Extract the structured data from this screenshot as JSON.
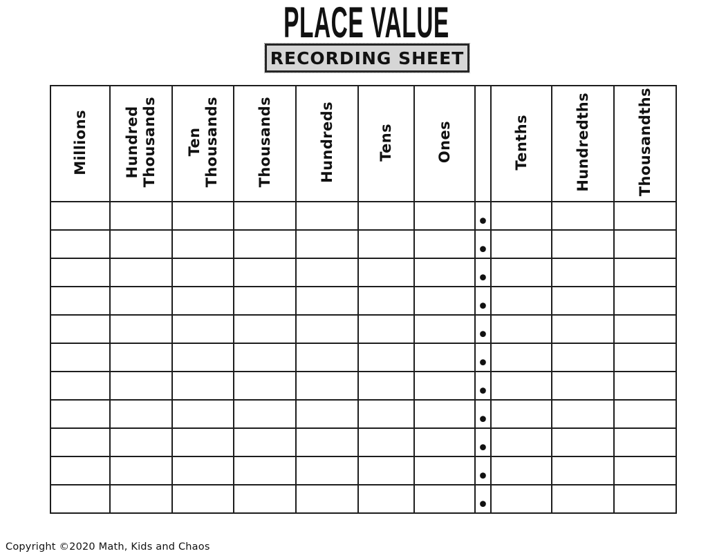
{
  "page": {
    "title": "PLACE VALUE",
    "subtitle": "RECORDING SHEET",
    "copyright": "Copyright ©2020 Math, Kids and Chaos"
  },
  "table": {
    "decimal_mark": "•",
    "row_count": 11,
    "columns": [
      {
        "key": "millions",
        "label": "Millions"
      },
      {
        "key": "hundred-thousands",
        "label": "Hundred\nThousands"
      },
      {
        "key": "ten-thousands",
        "label": "Ten\nThousands"
      },
      {
        "key": "thousands",
        "label": "Thousands"
      },
      {
        "key": "hundreds",
        "label": "Hundreds"
      },
      {
        "key": "tens",
        "label": "Tens"
      },
      {
        "key": "ones",
        "label": "Ones"
      },
      {
        "key": "decimal-point",
        "label": ""
      },
      {
        "key": "tenths",
        "label": "Tenths"
      },
      {
        "key": "hundredths",
        "label": "Hundredths"
      },
      {
        "key": "thousandths",
        "label": "Thousandths"
      }
    ]
  },
  "colors": {
    "border": "#1d1d1d",
    "subtitle_box_bg": "#d6d6d6",
    "text": "#111111"
  }
}
